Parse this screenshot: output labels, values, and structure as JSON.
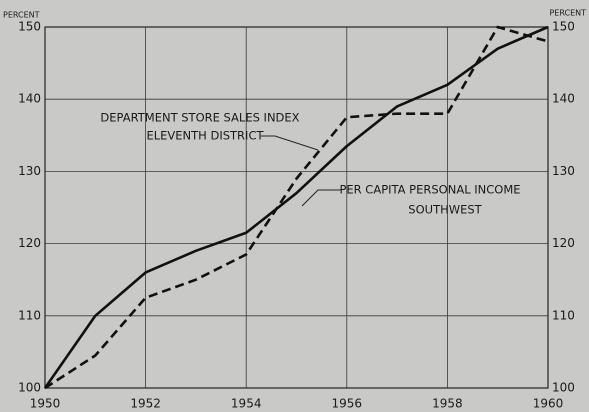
{
  "chart_data": {
    "type": "line",
    "y_label": "PERCENT",
    "x": [
      1950,
      1951,
      1952,
      1953,
      1954,
      1955,
      1956,
      1957,
      1958,
      1959,
      1960
    ],
    "series": [
      {
        "label": [
          "DEPARTMENT STORE SALES INDEX",
          "ELEVENTH DISTRICT"
        ],
        "color": "#111111",
        "dash": true,
        "values": [
          100,
          104.5,
          112.5,
          115,
          118.5,
          129,
          137.5,
          138,
          138,
          150,
          148
        ]
      },
      {
        "label": [
          "PER CAPITA PERSONAL INCOME",
          "SOUTHWEST"
        ],
        "color": "#111111",
        "dash": false,
        "values": [
          100,
          110,
          116,
          119,
          121.5,
          127,
          133.5,
          139,
          142,
          147,
          150
        ]
      }
    ],
    "xlim": [
      1950,
      1960
    ],
    "xticks": [
      1950,
      1952,
      1954,
      1956,
      1958,
      1960
    ],
    "ylim": [
      100,
      150
    ],
    "yticks": [
      100,
      110,
      120,
      130,
      140,
      150
    ],
    "grid": true
  }
}
